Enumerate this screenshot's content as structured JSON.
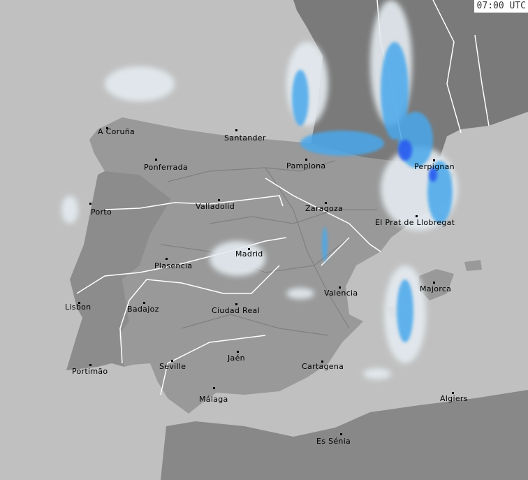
{
  "timestamp": "07:00 UTC",
  "colors": {
    "sea": "#c0c0c0",
    "spain": "#999999",
    "portugal": "#8c8c8c",
    "france": "#7a7a7a",
    "africa": "#888888",
    "rain_light": "#dfe8ee",
    "rain_moderate": "#4aa8ec",
    "rain_heavy": "#2a5cf0"
  },
  "cities": [
    {
      "name": "A Coruña",
      "dot": [
        152,
        182
      ],
      "label": [
        140,
        182
      ]
    },
    {
      "name": "Santander",
      "dot": [
        337,
        185
      ],
      "label": [
        321,
        191
      ]
    },
    {
      "name": "Ponferrada",
      "dot": [
        222,
        227
      ],
      "label": [
        206,
        233
      ]
    },
    {
      "name": "Pamplona",
      "dot": [
        437,
        227
      ],
      "label": [
        410,
        231
      ]
    },
    {
      "name": "Perpignan",
      "dot": [
        620,
        228
      ],
      "label": [
        593,
        232
      ]
    },
    {
      "name": "Porto",
      "dot": [
        128,
        290
      ],
      "label": [
        130,
        297
      ]
    },
    {
      "name": "Valladolid",
      "dot": [
        312,
        285
      ],
      "label": [
        280,
        289
      ]
    },
    {
      "name": "Zaragoza",
      "dot": [
        465,
        289
      ],
      "label": [
        437,
        292
      ]
    },
    {
      "name": "El Prat de Llobregat",
      "dot": [
        595,
        308
      ],
      "label": [
        537,
        312
      ]
    },
    {
      "name": "Madrid",
      "dot": [
        355,
        355
      ],
      "label": [
        337,
        357
      ]
    },
    {
      "name": "Plasencia",
      "dot": [
        237,
        369
      ],
      "label": [
        221,
        374
      ]
    },
    {
      "name": "Majorca",
      "dot": [
        620,
        403
      ],
      "label": [
        601,
        407
      ]
    },
    {
      "name": "Valencia",
      "dot": [
        485,
        410
      ],
      "label": [
        464,
        413
      ]
    },
    {
      "name": "Lisbon",
      "dot": [
        112,
        432
      ],
      "label": [
        93,
        433
      ]
    },
    {
      "name": "Badajoz",
      "dot": [
        205,
        432
      ],
      "label": [
        182,
        436
      ]
    },
    {
      "name": "Ciudad Real",
      "dot": [
        337,
        434
      ],
      "label": [
        303,
        438
      ]
    },
    {
      "name": "Jaén",
      "dot": [
        339,
        502
      ],
      "label": [
        326,
        506
      ]
    },
    {
      "name": "Seville",
      "dot": [
        245,
        515
      ],
      "label": [
        228,
        518
      ]
    },
    {
      "name": "Portimão",
      "dot": [
        128,
        521
      ],
      "label": [
        103,
        525
      ]
    },
    {
      "name": "Cartagena",
      "dot": [
        460,
        516
      ],
      "label": [
        432,
        518
      ]
    },
    {
      "name": "Málaga",
      "dot": [
        305,
        554
      ],
      "label": [
        285,
        565
      ]
    },
    {
      "name": "Algiers",
      "dot": [
        647,
        561
      ],
      "label": [
        630,
        564
      ]
    },
    {
      "name": "Es Sénia",
      "dot": [
        487,
        620
      ],
      "label": [
        453,
        625
      ]
    }
  ]
}
